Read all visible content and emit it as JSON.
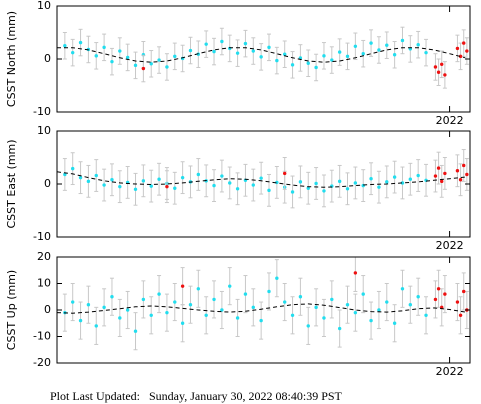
{
  "chart_data": [
    {
      "type": "scatter",
      "ylabel": "CSST North (mm)",
      "xlim": [
        2019.5,
        2022.13
      ],
      "xticks": [
        2022
      ],
      "ylim": [
        -10,
        10
      ],
      "yticks": [
        -10,
        0,
        10
      ],
      "series": [
        {
          "kind": "points",
          "color": "#22ddee",
          "error": 2.5,
          "x": [
            2019.55,
            2019.6,
            2019.65,
            2019.7,
            2019.75,
            2019.8,
            2019.85,
            2019.9,
            2019.95,
            2020.0,
            2020.05,
            2020.1,
            2020.15,
            2020.2,
            2020.25,
            2020.3,
            2020.35,
            2020.4,
            2020.45,
            2020.5,
            2020.55,
            2020.6,
            2020.65,
            2020.7,
            2020.75,
            2020.8,
            2020.85,
            2020.9,
            2020.95,
            2021.0,
            2021.05,
            2021.1,
            2021.15,
            2021.2,
            2021.25,
            2021.3,
            2021.35,
            2021.4,
            2021.45,
            2021.5,
            2021.55,
            2021.6,
            2021.65,
            2021.7,
            2021.75,
            2021.8,
            2021.85
          ],
          "values": [
            2.5,
            1.2,
            3.1,
            1.8,
            0.6,
            2.2,
            -0.5,
            1.5,
            0.3,
            -1.2,
            0.8,
            -0.9,
            -0.2,
            -1.5,
            0.5,
            0.1,
            1.6,
            0.9,
            2.8,
            1.4,
            3.3,
            2.0,
            1.1,
            2.9,
            1.5,
            0.4,
            2.2,
            -0.3,
            0.9,
            -1.1,
            0.2,
            -0.8,
            -1.6,
            0.6,
            -0.2,
            1.3,
            0.5,
            2.4,
            1.0,
            3.0,
            1.7,
            2.6,
            0.8,
            3.5,
            1.9,
            2.7,
            1.2
          ]
        },
        {
          "kind": "points",
          "color": "#ee1111",
          "error": 2.5,
          "x": [
            2020.05,
            2021.91,
            2021.93,
            2021.95,
            2021.97,
            2022.05,
            2022.07,
            2022.09,
            2022.11
          ],
          "values": [
            -1.8,
            -1.5,
            -2.5,
            -1.0,
            -3.0,
            2.0,
            0.5,
            3.0,
            1.5
          ]
        },
        {
          "kind": "line",
          "color": "#000000",
          "x": [
            2019.5,
            2019.6,
            2019.7,
            2019.8,
            2019.9,
            2020.0,
            2020.1,
            2020.2,
            2020.3,
            2020.4,
            2020.5,
            2020.6,
            2020.7,
            2020.8,
            2020.9,
            2021.0,
            2021.1,
            2021.2,
            2021.3,
            2021.4,
            2021.5,
            2021.6,
            2021.7,
            2021.8,
            2021.9,
            2022.0,
            2022.1
          ],
          "values": [
            2.14,
            2.14,
            1.72,
            1.0,
            0.22,
            -0.38,
            -0.6,
            -0.38,
            0.22,
            1.0,
            1.72,
            2.14,
            2.14,
            1.72,
            1.0,
            0.22,
            -0.38,
            -0.6,
            -0.38,
            0.22,
            1.0,
            1.72,
            2.14,
            2.14,
            1.72,
            1.0,
            0.22
          ]
        }
      ]
    },
    {
      "type": "scatter",
      "ylabel": "CSST East (mm)",
      "xlim": [
        2019.5,
        2022.13
      ],
      "xticks": [
        2022
      ],
      "ylim": [
        -10,
        10
      ],
      "yticks": [
        -10,
        0,
        10
      ],
      "series": [
        {
          "kind": "points",
          "color": "#22ddee",
          "error": 3,
          "x": [
            2019.55,
            2019.6,
            2019.65,
            2019.7,
            2019.75,
            2019.8,
            2019.85,
            2019.9,
            2019.95,
            2020.0,
            2020.05,
            2020.1,
            2020.15,
            2020.2,
            2020.25,
            2020.3,
            2020.35,
            2020.4,
            2020.45,
            2020.5,
            2020.55,
            2020.6,
            2020.65,
            2020.7,
            2020.75,
            2020.8,
            2020.85,
            2020.9,
            2020.95,
            2021.0,
            2021.05,
            2021.1,
            2021.15,
            2021.2,
            2021.25,
            2021.3,
            2021.35,
            2021.4,
            2021.45,
            2021.5,
            2021.55,
            2021.6,
            2021.65,
            2021.7,
            2021.75,
            2021.8,
            2021.85
          ],
          "values": [
            1.8,
            2.9,
            1.2,
            0.5,
            1.6,
            -0.2,
            0.8,
            -0.5,
            0.3,
            -1.0,
            0.6,
            -0.4,
            0.9,
            0.1,
            -0.8,
            1.2,
            0.4,
            1.8,
            0.6,
            -0.3,
            1.5,
            0.2,
            -0.9,
            0.7,
            -0.2,
            1.1,
            -1.2,
            0.3,
            -0.6,
            -1.5,
            0.4,
            -0.8,
            0.1,
            -1.3,
            -0.4,
            0.5,
            -0.9,
            0.2,
            -0.3,
            1.0,
            -0.6,
            0.4,
            1.3,
            0.2,
            0.9,
            1.6,
            0.7
          ]
        },
        {
          "kind": "points",
          "color": "#ee1111",
          "error": 3,
          "x": [
            2020.2,
            2020.95,
            2021.91,
            2021.93,
            2021.95,
            2021.97,
            2022.05,
            2022.07,
            2022.09,
            2022.11
          ],
          "values": [
            -0.5,
            2.0,
            1.5,
            3.0,
            0.5,
            2.0,
            2.5,
            0.8,
            3.5,
            1.8
          ]
        },
        {
          "kind": "line",
          "color": "#000000",
          "x": [
            2019.5,
            2019.6,
            2019.7,
            2019.8,
            2019.9,
            2020.0,
            2020.1,
            2020.2,
            2020.3,
            2020.4,
            2020.5,
            2020.6,
            2020.7,
            2020.8,
            2020.9,
            2021.0,
            2021.1,
            2021.2,
            2021.3,
            2021.4,
            2021.5,
            2021.6,
            2021.7,
            2021.8,
            2021.9,
            2022.0,
            2022.1
          ],
          "values": [
            2.3,
            1.9,
            1.2,
            0.6,
            0.2,
            0.0,
            -0.1,
            0.0,
            0.2,
            0.5,
            0.8,
            1.0,
            0.9,
            0.6,
            0.2,
            -0.2,
            -0.5,
            -0.6,
            -0.5,
            -0.3,
            -0.1,
            0.0,
            0.2,
            0.4,
            0.7,
            1.0,
            1.3
          ]
        }
      ]
    },
    {
      "type": "scatter",
      "ylabel": "CSST Up (mm)",
      "xlim": [
        2019.5,
        2022.13
      ],
      "xticks": [
        2022
      ],
      "ylim": [
        -20,
        20
      ],
      "yticks": [
        -20,
        -10,
        0,
        10,
        20
      ],
      "series": [
        {
          "kind": "points",
          "color": "#22ddee",
          "error": 7,
          "x": [
            2019.55,
            2019.6,
            2019.65,
            2019.7,
            2019.75,
            2019.8,
            2019.85,
            2019.9,
            2019.95,
            2020.0,
            2020.05,
            2020.1,
            2020.15,
            2020.2,
            2020.25,
            2020.3,
            2020.35,
            2020.4,
            2020.45,
            2020.5,
            2020.55,
            2020.6,
            2020.65,
            2020.7,
            2020.75,
            2020.8,
            2020.85,
            2020.9,
            2020.95,
            2021.0,
            2021.05,
            2021.1,
            2021.15,
            2021.2,
            2021.25,
            2021.3,
            2021.35,
            2021.4,
            2021.45,
            2021.5,
            2021.55,
            2021.6,
            2021.65,
            2021.7,
            2021.75,
            2021.8,
            2021.85
          ],
          "values": [
            -1,
            3,
            -4,
            2,
            -6,
            1,
            5,
            -3,
            0,
            -8,
            4,
            -2,
            6,
            -1,
            3,
            -5,
            2,
            8,
            -2,
            4,
            0,
            9,
            -3,
            6,
            1,
            -4,
            7,
            12,
            3,
            -2,
            5,
            -6,
            1,
            -3,
            4,
            -7,
            2,
            -1,
            6,
            -4,
            0,
            3,
            -5,
            8,
            2,
            5,
            -2
          ]
        },
        {
          "kind": "points",
          "color": "#ee1111",
          "error": 7,
          "x": [
            2020.3,
            2021.4,
            2021.91,
            2021.93,
            2021.95,
            2021.97,
            2022.05,
            2022.07,
            2022.09,
            2022.11
          ],
          "values": [
            9,
            14,
            4,
            8,
            1,
            6,
            3,
            -2,
            7,
            0
          ]
        },
        {
          "kind": "line",
          "color": "#000000",
          "x": [
            2019.5,
            2019.6,
            2019.7,
            2019.8,
            2019.9,
            2020.0,
            2020.1,
            2020.2,
            2020.3,
            2020.4,
            2020.5,
            2020.6,
            2020.7,
            2020.8,
            2020.9,
            2021.0,
            2021.1,
            2021.2,
            2021.3,
            2021.4,
            2021.5,
            2021.6,
            2021.7,
            2021.8,
            2021.9,
            2022.0,
            2022.1
          ],
          "values": [
            -1,
            -1.2,
            -0.8,
            -0.2,
            0.5,
            1.2,
            1.5,
            1.2,
            0.6,
            0,
            -0.5,
            -0.8,
            -0.5,
            0.3,
            1.2,
            2.0,
            2.3,
            1.8,
            0.9,
            0,
            -0.6,
            -0.8,
            -0.3,
            0.5,
            0.8,
            0.2,
            -0.8
          ]
        }
      ]
    }
  ],
  "footer": "Plot Last Updated:   Sunday, January 30, 2022 08:40:39 PST"
}
